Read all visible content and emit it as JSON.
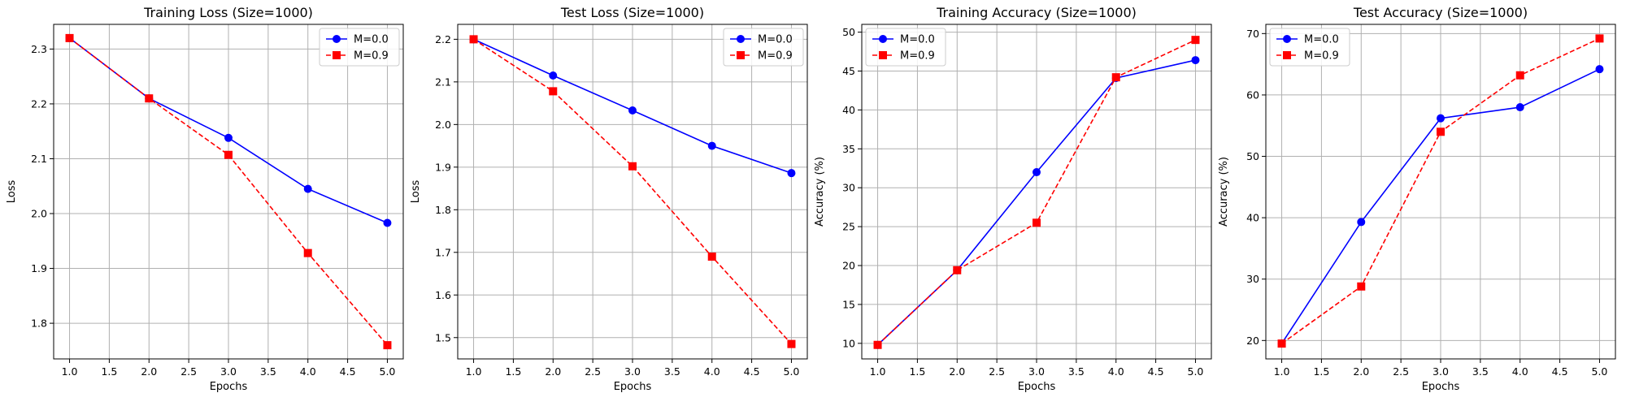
{
  "chart_data": [
    {
      "type": "line",
      "title": "Training Loss (Size=1000)",
      "xlabel": "Epochs",
      "ylabel": "Loss",
      "x": [
        1,
        2,
        3,
        4,
        5
      ],
      "xlim": [
        0.8,
        5.2
      ],
      "ylim": [
        1.735,
        2.345
      ],
      "xticks": [
        "1.0",
        "1.5",
        "2.0",
        "2.5",
        "3.0",
        "3.5",
        "4.0",
        "4.5",
        "5.0"
      ],
      "yticks": [
        "1.8",
        "1.9",
        "2.0",
        "2.1",
        "2.2",
        "2.3"
      ],
      "grid": true,
      "legend_position": "top-right",
      "series": [
        {
          "name": "M=0.0",
          "values": [
            2.32,
            2.21,
            2.138,
            2.045,
            1.983
          ],
          "color": "#0000ff",
          "linestyle": "solid",
          "marker": "circle"
        },
        {
          "name": "M=0.9",
          "values": [
            2.32,
            2.21,
            2.107,
            1.928,
            1.76
          ],
          "color": "#ff0000",
          "linestyle": "dashed",
          "marker": "square"
        }
      ]
    },
    {
      "type": "line",
      "title": "Test Loss (Size=1000)",
      "xlabel": "Epochs",
      "ylabel": "Loss",
      "x": [
        1,
        2,
        3,
        4,
        5
      ],
      "xlim": [
        0.8,
        5.2
      ],
      "ylim": [
        1.45,
        2.235
      ],
      "xticks": [
        "1.0",
        "1.5",
        "2.0",
        "2.5",
        "3.0",
        "3.5",
        "4.0",
        "4.5",
        "5.0"
      ],
      "yticks": [
        "1.5",
        "1.6",
        "1.7",
        "1.8",
        "1.9",
        "2.0",
        "2.1",
        "2.2"
      ],
      "grid": true,
      "legend_position": "top-right",
      "series": [
        {
          "name": "M=0.0",
          "values": [
            2.2,
            2.115,
            2.033,
            1.95,
            1.886
          ],
          "color": "#0000ff",
          "linestyle": "solid",
          "marker": "circle"
        },
        {
          "name": "M=0.9",
          "values": [
            2.2,
            2.078,
            1.902,
            1.69,
            1.485
          ],
          "color": "#ff0000",
          "linestyle": "dashed",
          "marker": "square"
        }
      ]
    },
    {
      "type": "line",
      "title": "Training Accuracy (Size=1000)",
      "xlabel": "Epochs",
      "ylabel": "Accuracy (%)",
      "x": [
        1,
        2,
        3,
        4,
        5
      ],
      "xlim": [
        0.8,
        5.2
      ],
      "ylim": [
        8.0,
        51.0
      ],
      "xticks": [
        "1.0",
        "1.5",
        "2.0",
        "2.5",
        "3.0",
        "3.5",
        "4.0",
        "4.5",
        "5.0"
      ],
      "yticks": [
        "10",
        "15",
        "20",
        "25",
        "30",
        "35",
        "40",
        "45",
        "50"
      ],
      "grid": true,
      "legend_position": "top-left",
      "series": [
        {
          "name": "M=0.0",
          "values": [
            9.8,
            19.4,
            32.0,
            44.1,
            46.4
          ],
          "color": "#0000ff",
          "linestyle": "solid",
          "marker": "circle"
        },
        {
          "name": "M=0.9",
          "values": [
            9.8,
            19.4,
            25.5,
            44.2,
            49.0
          ],
          "color": "#ff0000",
          "linestyle": "dashed",
          "marker": "square"
        }
      ]
    },
    {
      "type": "line",
      "title": "Test Accuracy (Size=1000)",
      "xlabel": "Epochs",
      "ylabel": "Accuracy (%)",
      "x": [
        1,
        2,
        3,
        4,
        5
      ],
      "xlim": [
        0.8,
        5.2
      ],
      "ylim": [
        17.0,
        71.5
      ],
      "xticks": [
        "1.0",
        "1.5",
        "2.0",
        "2.5",
        "3.0",
        "3.5",
        "4.0",
        "4.5",
        "5.0"
      ],
      "yticks": [
        "20",
        "30",
        "40",
        "50",
        "60",
        "70"
      ],
      "grid": true,
      "legend_position": "top-left",
      "series": [
        {
          "name": "M=0.0",
          "values": [
            19.5,
            39.3,
            56.2,
            58.0,
            64.2
          ],
          "color": "#0000ff",
          "linestyle": "solid",
          "marker": "circle"
        },
        {
          "name": "M=0.9",
          "values": [
            19.5,
            28.8,
            54.0,
            63.2,
            69.2
          ],
          "color": "#ff0000",
          "linestyle": "dashed",
          "marker": "square"
        }
      ]
    }
  ]
}
